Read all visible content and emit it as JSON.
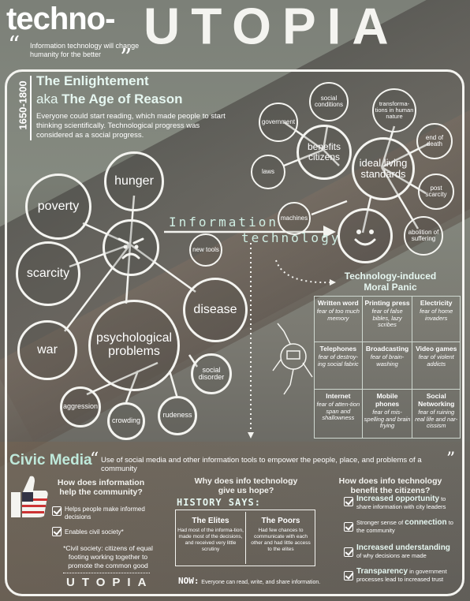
{
  "header": {
    "title_left": "techno-",
    "title_right": "UTOPIA",
    "quote_open": "“",
    "quote_close": "”",
    "quote": "Information technology will change humanity for the better"
  },
  "enlightenment": {
    "years": "1650-1800",
    "title": "The Enlightement",
    "aka": "aka",
    "subtitle": "The Age of Reason",
    "body": "Everyone could start reading, which made people to start thinking scientifically. Technological progress was considered as a social progress."
  },
  "problems": {
    "center_icon": "angry-face",
    "items": [
      "hunger",
      "poverty",
      "scarcity",
      "war",
      "psychological problems",
      "disease",
      "social disorder",
      "aggression",
      "crowding",
      "rudeness"
    ]
  },
  "flow": {
    "line1": "Information",
    "line2": "technology",
    "bubbles": [
      "new tools",
      "machines"
    ]
  },
  "benefits": {
    "center": "benefits citizens",
    "items": [
      "government",
      "social conditions",
      "laws"
    ]
  },
  "standards": {
    "center": "ideal living standards",
    "items": [
      "transforma-tions in human nature",
      "end of death",
      "post scarcity",
      "abolition of suffering"
    ],
    "center_icon": "smiley-face"
  },
  "moral_panic": {
    "title_line1": "Technology-induced",
    "title_line2": "Moral Panic",
    "cells": [
      {
        "head": "Written word",
        "body": "fear of too much memory"
      },
      {
        "head": "Printing press",
        "body": "fear of false bibles, lazy scribes"
      },
      {
        "head": "Electricity",
        "body": "fear of home invaders"
      },
      {
        "head": "Telephones",
        "body": "fear of destroy-ing social fabric"
      },
      {
        "head": "Broadcasting",
        "body": "fear of brain-washing"
      },
      {
        "head": "Video games",
        "body": "fear of violent addicts"
      },
      {
        "head": "Internet",
        "body": "fear of atten-tion span and shallowness"
      },
      {
        "head": "Mobile phones",
        "body": "fear of mis-spelling and brain frying"
      },
      {
        "head": "Social Networking",
        "body": "fear of ruining real life and nar-cissism"
      }
    ]
  },
  "civic": {
    "title": "Civic Media",
    "quote_open": "“",
    "quote_close": "”",
    "quote": "Use of social media and other information tools to empower the people, place, and problems of a community",
    "col1": {
      "heading": "How does information help the community?",
      "items": [
        "Helps people make informed decisions",
        "Enables civil society*"
      ],
      "note": "*Civil society: citizens of equal footing working together to promote the common good",
      "footer": "UTOPIA"
    },
    "col2": {
      "heading": "Why does info technology give us hope?",
      "history": "HISTORY SAYS:",
      "elites_title": "The Elites",
      "elites_body": "Had most of the informa-tion, made most of the decisions, and received very little scrutiny",
      "poors_title": "The Poors",
      "poors_body": "Had few chances to communicate with each other and had little access to the elites",
      "now_label": "NOW:",
      "now_body": "Everyone can read, write, and share information."
    },
    "col3": {
      "heading": "How does info technology benefit the citizens?",
      "items": [
        {
          "strong": "Increased opportunity",
          "rest": " to share information with city leaders"
        },
        {
          "pre": "Stronger sense of ",
          "strong": "connection",
          "rest": " to the community"
        },
        {
          "strong": "Increased understanding",
          "rest": " of why decisions are made"
        },
        {
          "strong": "Transparency",
          "rest": " in government processes lead to increased trust"
        }
      ]
    }
  },
  "colors": {
    "accent": "#bfe9db",
    "line": "#f4f4f0",
    "heading": "#e6f7f1"
  }
}
